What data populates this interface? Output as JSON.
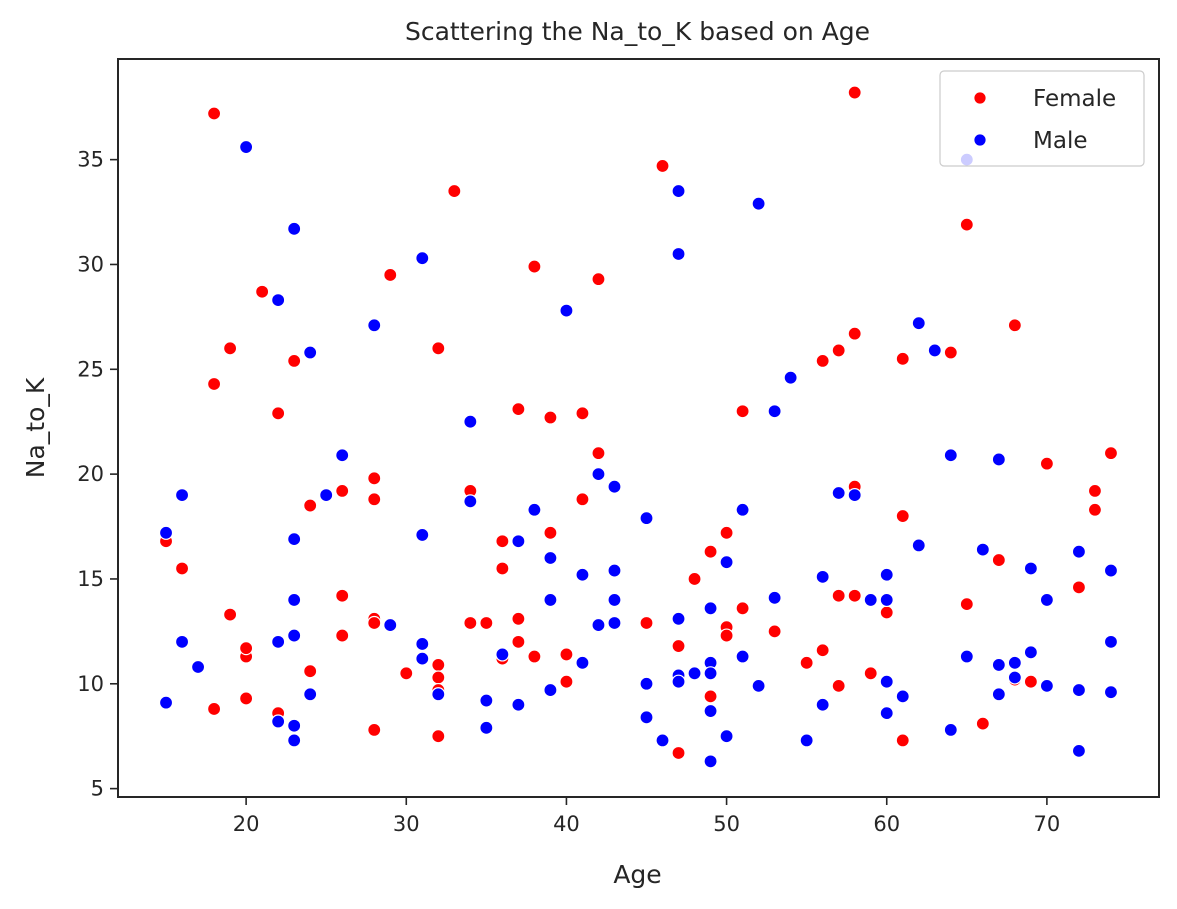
{
  "chart_data": {
    "type": "scatter",
    "title": "Scattering the Na_to_K based on Age",
    "xlabel": "Age",
    "ylabel": "Na_to_K",
    "xlim": [
      12,
      77
    ],
    "ylim": [
      4.6,
      39.8
    ],
    "xticks": [
      20,
      30,
      40,
      50,
      60,
      70
    ],
    "yticks": [
      5,
      10,
      15,
      20,
      25,
      30,
      35
    ],
    "grid": false,
    "legend_position": "top-right",
    "series": [
      {
        "name": "Female",
        "color": "#ff0000",
        "points": [
          [
            15,
            16.8
          ],
          [
            16,
            15.5
          ],
          [
            18,
            37.2
          ],
          [
            18,
            24.3
          ],
          [
            18,
            8.8
          ],
          [
            19,
            26.0
          ],
          [
            19,
            13.3
          ],
          [
            20,
            11.3
          ],
          [
            20,
            11.7
          ],
          [
            20,
            9.3
          ],
          [
            21,
            28.7
          ],
          [
            22,
            22.9
          ],
          [
            22,
            8.6
          ],
          [
            23,
            25.4
          ],
          [
            24,
            18.5
          ],
          [
            24,
            10.6
          ],
          [
            26,
            19.2
          ],
          [
            26,
            14.2
          ],
          [
            26,
            12.3
          ],
          [
            28,
            19.8
          ],
          [
            28,
            18.8
          ],
          [
            28,
            13.1
          ],
          [
            28,
            12.9
          ],
          [
            28,
            7.8
          ],
          [
            29,
            29.5
          ],
          [
            30,
            10.5
          ],
          [
            32,
            26.0
          ],
          [
            32,
            10.9
          ],
          [
            32,
            10.3
          ],
          [
            32,
            9.7
          ],
          [
            32,
            7.5
          ],
          [
            33,
            33.5
          ],
          [
            34,
            19.2
          ],
          [
            34,
            12.9
          ],
          [
            35,
            12.9
          ],
          [
            36,
            16.8
          ],
          [
            36,
            15.5
          ],
          [
            36,
            11.2
          ],
          [
            37,
            23.1
          ],
          [
            37,
            13.1
          ],
          [
            37,
            12.0
          ],
          [
            38,
            29.9
          ],
          [
            38,
            11.3
          ],
          [
            39,
            22.7
          ],
          [
            39,
            17.2
          ],
          [
            40,
            11.4
          ],
          [
            40,
            10.1
          ],
          [
            41,
            22.9
          ],
          [
            41,
            18.8
          ],
          [
            42,
            29.3
          ],
          [
            42,
            21.0
          ],
          [
            45,
            12.9
          ],
          [
            46,
            34.7
          ],
          [
            47,
            11.8
          ],
          [
            47,
            6.7
          ],
          [
            48,
            15.0
          ],
          [
            49,
            16.3
          ],
          [
            49,
            9.4
          ],
          [
            50,
            17.2
          ],
          [
            50,
            12.7
          ],
          [
            50,
            12.3
          ],
          [
            51,
            23.0
          ],
          [
            51,
            13.6
          ],
          [
            53,
            12.5
          ],
          [
            55,
            11.0
          ],
          [
            56,
            25.4
          ],
          [
            56,
            11.6
          ],
          [
            57,
            25.9
          ],
          [
            57,
            14.2
          ],
          [
            57,
            9.9
          ],
          [
            58,
            38.2
          ],
          [
            58,
            26.7
          ],
          [
            58,
            19.4
          ],
          [
            58,
            14.2
          ],
          [
            59,
            10.5
          ],
          [
            60,
            13.4
          ],
          [
            61,
            25.5
          ],
          [
            61,
            18.0
          ],
          [
            61,
            7.3
          ],
          [
            64,
            25.8
          ],
          [
            65,
            31.9
          ],
          [
            65,
            13.8
          ],
          [
            66,
            8.1
          ],
          [
            67,
            15.9
          ],
          [
            68,
            27.1
          ],
          [
            68,
            10.2
          ],
          [
            69,
            10.1
          ],
          [
            70,
            20.5
          ],
          [
            72,
            14.6
          ],
          [
            73,
            19.2
          ],
          [
            73,
            18.3
          ],
          [
            74,
            21.0
          ]
        ]
      },
      {
        "name": "Male",
        "color": "#0000ff",
        "points": [
          [
            15,
            17.2
          ],
          [
            15,
            9.1
          ],
          [
            16,
            19.0
          ],
          [
            16,
            12.0
          ],
          [
            17,
            10.8
          ],
          [
            20,
            35.6
          ],
          [
            22,
            28.3
          ],
          [
            22,
            12.0
          ],
          [
            22,
            8.2
          ],
          [
            23,
            31.7
          ],
          [
            23,
            16.9
          ],
          [
            23,
            14.0
          ],
          [
            23,
            12.3
          ],
          [
            23,
            8.0
          ],
          [
            23,
            7.3
          ],
          [
            24,
            25.8
          ],
          [
            24,
            9.5
          ],
          [
            25,
            19.0
          ],
          [
            26,
            20.9
          ],
          [
            28,
            27.1
          ],
          [
            29,
            12.8
          ],
          [
            31,
            30.3
          ],
          [
            31,
            17.1
          ],
          [
            31,
            11.9
          ],
          [
            31,
            11.2
          ],
          [
            32,
            9.5
          ],
          [
            34,
            22.5
          ],
          [
            34,
            18.7
          ],
          [
            35,
            9.2
          ],
          [
            35,
            7.9
          ],
          [
            36,
            11.4
          ],
          [
            37,
            16.8
          ],
          [
            37,
            9.0
          ],
          [
            38,
            18.3
          ],
          [
            39,
            16.0
          ],
          [
            39,
            14.0
          ],
          [
            39,
            9.7
          ],
          [
            40,
            27.8
          ],
          [
            41,
            15.2
          ],
          [
            41,
            11.0
          ],
          [
            42,
            20.0
          ],
          [
            42,
            12.8
          ],
          [
            43,
            19.4
          ],
          [
            43,
            15.4
          ],
          [
            43,
            14.0
          ],
          [
            43,
            12.9
          ],
          [
            45,
            17.9
          ],
          [
            45,
            10.0
          ],
          [
            45,
            8.4
          ],
          [
            46,
            7.3
          ],
          [
            47,
            33.5
          ],
          [
            47,
            30.5
          ],
          [
            47,
            13.1
          ],
          [
            47,
            10.4
          ],
          [
            47,
            10.1
          ],
          [
            48,
            10.5
          ],
          [
            49,
            13.6
          ],
          [
            49,
            11.0
          ],
          [
            49,
            10.5
          ],
          [
            49,
            8.7
          ],
          [
            49,
            6.3
          ],
          [
            50,
            15.8
          ],
          [
            50,
            7.5
          ],
          [
            51,
            18.3
          ],
          [
            51,
            11.3
          ],
          [
            52,
            32.9
          ],
          [
            52,
            9.9
          ],
          [
            53,
            23.0
          ],
          [
            53,
            14.1
          ],
          [
            54,
            24.6
          ],
          [
            55,
            7.3
          ],
          [
            56,
            15.1
          ],
          [
            56,
            9.0
          ],
          [
            57,
            19.1
          ],
          [
            58,
            19.0
          ],
          [
            59,
            14.0
          ],
          [
            60,
            15.2
          ],
          [
            60,
            14.0
          ],
          [
            60,
            10.1
          ],
          [
            60,
            8.6
          ],
          [
            61,
            9.4
          ],
          [
            62,
            27.2
          ],
          [
            62,
            16.6
          ],
          [
            63,
            25.9
          ],
          [
            64,
            20.9
          ],
          [
            64,
            7.8
          ],
          [
            65,
            35.0
          ],
          [
            65,
            11.3
          ],
          [
            66,
            16.4
          ],
          [
            67,
            20.7
          ],
          [
            67,
            10.9
          ],
          [
            67,
            9.5
          ],
          [
            68,
            11.0
          ],
          [
            68,
            10.3
          ],
          [
            69,
            15.5
          ],
          [
            69,
            11.5
          ],
          [
            70,
            14.0
          ],
          [
            70,
            9.9
          ],
          [
            72,
            16.3
          ],
          [
            72,
            9.7
          ],
          [
            72,
            6.8
          ],
          [
            74,
            15.4
          ],
          [
            74,
            12.0
          ],
          [
            74,
            9.6
          ]
        ]
      }
    ]
  }
}
